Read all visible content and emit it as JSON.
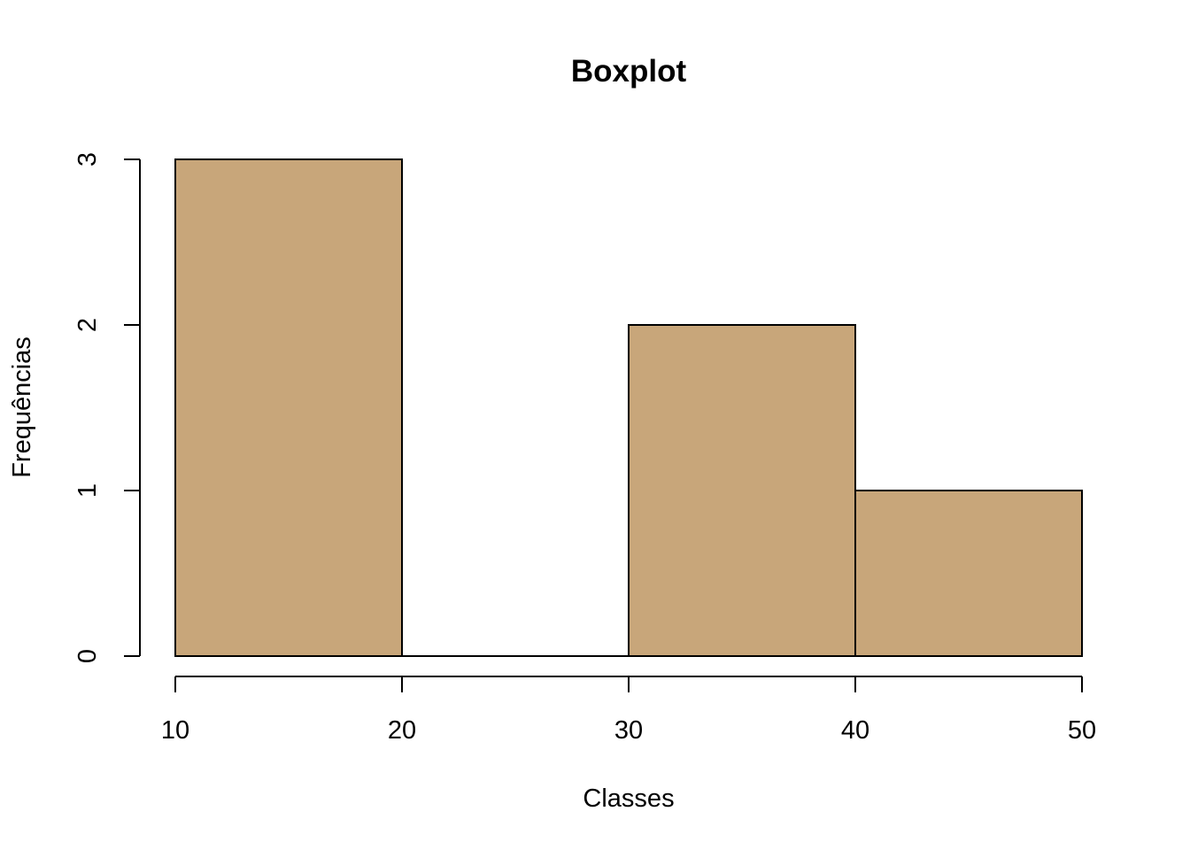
{
  "chart_data": {
    "type": "bar",
    "title": "Boxplot",
    "xlabel": "Classes",
    "ylabel": "Frequências",
    "bins": [
      {
        "start": 10,
        "end": 20,
        "value": 3
      },
      {
        "start": 20,
        "end": 30,
        "value": 0
      },
      {
        "start": 30,
        "end": 40,
        "value": 2
      },
      {
        "start": 40,
        "end": 50,
        "value": 1
      }
    ],
    "x_ticks": [
      "10",
      "20",
      "30",
      "40",
      "50"
    ],
    "y_ticks": [
      "0",
      "1",
      "2",
      "3"
    ],
    "xlim": [
      10,
      50
    ],
    "ylim": [
      0,
      3
    ],
    "grid": false,
    "bar_color": "#C8A67A"
  }
}
